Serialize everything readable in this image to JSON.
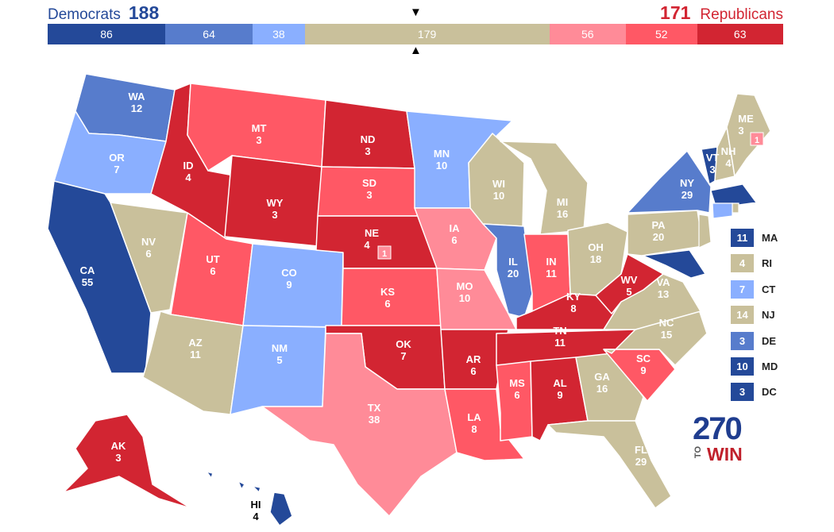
{
  "header": {
    "dem_label": "Democrats",
    "dem_total": "188",
    "rep_label": "Republicans",
    "rep_total": "171",
    "marker_top": "▼",
    "marker_bottom": "▲"
  },
  "tally": [
    {
      "value": "86",
      "color": "#244999"
    },
    {
      "value": "64",
      "color": "#577ccc"
    },
    {
      "value": "38",
      "color": "#8aafff"
    },
    {
      "value": "179",
      "color": "#c9c09b"
    },
    {
      "value": "56",
      "color": "#ff8b98"
    },
    {
      "value": "52",
      "color": "#ff5865"
    },
    {
      "value": "63",
      "color": "#d22532"
    }
  ],
  "colors": {
    "safe_d": "#244999",
    "likely_d": "#577ccc",
    "lean_d": "#8aafff",
    "tossup": "#c9c09b",
    "lean_r": "#ff8b98",
    "likely_r": "#ff5865",
    "safe_r": "#d22532"
  },
  "states": {
    "WA": {
      "abbr": "WA",
      "ev": "12",
      "rating": "likely_d"
    },
    "OR": {
      "abbr": "OR",
      "ev": "7",
      "rating": "lean_d"
    },
    "CA": {
      "abbr": "CA",
      "ev": "55",
      "rating": "safe_d"
    },
    "NV": {
      "abbr": "NV",
      "ev": "6",
      "rating": "tossup"
    },
    "ID": {
      "abbr": "ID",
      "ev": "4",
      "rating": "safe_r"
    },
    "MT": {
      "abbr": "MT",
      "ev": "3",
      "rating": "likely_r"
    },
    "WY": {
      "abbr": "WY",
      "ev": "3",
      "rating": "safe_r"
    },
    "UT": {
      "abbr": "UT",
      "ev": "6",
      "rating": "likely_r"
    },
    "AZ": {
      "abbr": "AZ",
      "ev": "11",
      "rating": "tossup"
    },
    "CO": {
      "abbr": "CO",
      "ev": "9",
      "rating": "lean_d"
    },
    "NM": {
      "abbr": "NM",
      "ev": "5",
      "rating": "lean_d"
    },
    "ND": {
      "abbr": "ND",
      "ev": "3",
      "rating": "safe_r"
    },
    "SD": {
      "abbr": "SD",
      "ev": "3",
      "rating": "likely_r"
    },
    "NE": {
      "abbr": "NE",
      "ev": "4",
      "rating": "safe_r",
      "cd": "1"
    },
    "KS": {
      "abbr": "KS",
      "ev": "6",
      "rating": "likely_r"
    },
    "OK": {
      "abbr": "OK",
      "ev": "7",
      "rating": "safe_r"
    },
    "TX": {
      "abbr": "TX",
      "ev": "38",
      "rating": "lean_r"
    },
    "MN": {
      "abbr": "MN",
      "ev": "10",
      "rating": "lean_d"
    },
    "IA": {
      "abbr": "IA",
      "ev": "6",
      "rating": "lean_r"
    },
    "MO": {
      "abbr": "MO",
      "ev": "10",
      "rating": "lean_r"
    },
    "AR": {
      "abbr": "AR",
      "ev": "6",
      "rating": "safe_r"
    },
    "LA": {
      "abbr": "LA",
      "ev": "8",
      "rating": "likely_r"
    },
    "WI": {
      "abbr": "WI",
      "ev": "10",
      "rating": "tossup"
    },
    "IL": {
      "abbr": "IL",
      "ev": "20",
      "rating": "likely_d"
    },
    "MI": {
      "abbr": "MI",
      "ev": "16",
      "rating": "tossup"
    },
    "IN": {
      "abbr": "IN",
      "ev": "11",
      "rating": "likely_r"
    },
    "OH": {
      "abbr": "OH",
      "ev": "18",
      "rating": "tossup"
    },
    "KY": {
      "abbr": "KY",
      "ev": "8",
      "rating": "safe_r"
    },
    "TN": {
      "abbr": "TN",
      "ev": "11",
      "rating": "safe_r"
    },
    "MS": {
      "abbr": "MS",
      "ev": "6",
      "rating": "likely_r"
    },
    "AL": {
      "abbr": "AL",
      "ev": "9",
      "rating": "safe_r"
    },
    "GA": {
      "abbr": "GA",
      "ev": "16",
      "rating": "tossup"
    },
    "FL": {
      "abbr": "FL",
      "ev": "29",
      "rating": "tossup"
    },
    "SC": {
      "abbr": "SC",
      "ev": "9",
      "rating": "likely_r"
    },
    "NC": {
      "abbr": "NC",
      "ev": "15",
      "rating": "tossup"
    },
    "VA": {
      "abbr": "VA",
      "ev": "13",
      "rating": "tossup"
    },
    "WV": {
      "abbr": "WV",
      "ev": "5",
      "rating": "safe_r"
    },
    "PA": {
      "abbr": "PA",
      "ev": "20",
      "rating": "tossup"
    },
    "NY": {
      "abbr": "NY",
      "ev": "29",
      "rating": "likely_d"
    },
    "VT": {
      "abbr": "VT",
      "ev": "3",
      "rating": "safe_d"
    },
    "NH": {
      "abbr": "NH",
      "ev": "4",
      "rating": "tossup"
    },
    "ME": {
      "abbr": "ME",
      "ev": "3",
      "rating": "tossup",
      "cd": "1"
    },
    "AK": {
      "abbr": "AK",
      "ev": "3",
      "rating": "safe_r"
    },
    "HI": {
      "abbr": "HI",
      "ev": "4",
      "rating": "safe_d"
    }
  },
  "legend": [
    {
      "ev": "11",
      "abbr": "MA",
      "color": "#244999"
    },
    {
      "ev": "4",
      "abbr": "RI",
      "color": "#c9c09b"
    },
    {
      "ev": "7",
      "abbr": "CT",
      "color": "#8aafff"
    },
    {
      "ev": "14",
      "abbr": "NJ",
      "color": "#c9c09b"
    },
    {
      "ev": "3",
      "abbr": "DE",
      "color": "#577ccc"
    },
    {
      "ev": "10",
      "abbr": "MD",
      "color": "#244999"
    },
    {
      "ev": "3",
      "abbr": "DC",
      "color": "#244999"
    }
  ],
  "logo": {
    "number": "270",
    "to": "TO",
    "win": "WIN"
  }
}
